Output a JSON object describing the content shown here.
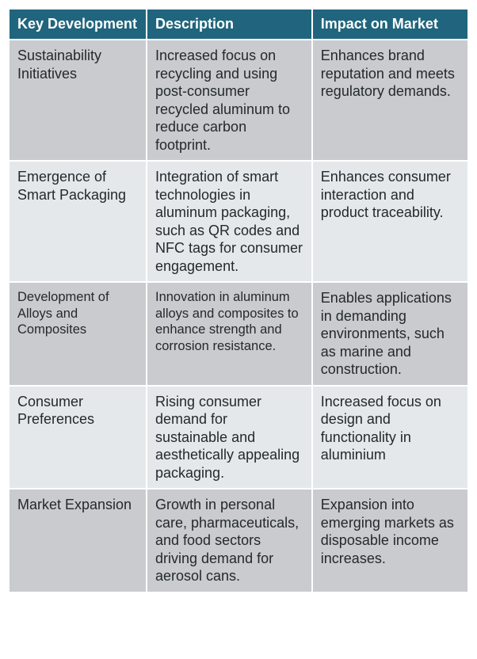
{
  "table": {
    "header_bg": "#20657d",
    "header_color": "#ffffff",
    "row_odd_bg": "#c9cbce",
    "row_even_bg": "#e5e8eb",
    "border_color": "#ffffff",
    "columns": [
      "Key Development",
      "Description",
      "Impact on Market"
    ],
    "column_widths": [
      "30%",
      "36%",
      "34%"
    ],
    "rows": [
      {
        "key": "Sustainability Initiatives",
        "desc": "Increased focus on recycling and using post-consumer recycled aluminum to reduce carbon footprint.",
        "impact": "Enhances brand reputation and meets regulatory demands."
      },
      {
        "key": "Emergence of Smart Packaging",
        "desc": "Integration of smart technologies in aluminum packaging, such as QR codes and NFC tags for consumer engagement.",
        "impact": "Enhances consumer interaction and product traceability."
      },
      {
        "key": "Development of Alloys and Composites",
        "desc": "Innovation in aluminum alloys and composites to enhance strength and corrosion resistance.",
        "impact": "Enables applications in demanding environments, such as marine and construction.",
        "small": true
      },
      {
        "key": "Consumer Preferences",
        "desc": "Rising consumer demand for sustainable and aesthetically appealing packaging.",
        "impact": "Increased focus on design and functionality in aluminium"
      },
      {
        "key": "Market Expansion",
        "desc": "Growth in personal care, pharmaceuticals, and food sectors driving demand for aerosol cans.",
        "impact": "Expansion into emerging markets as disposable income increases."
      }
    ]
  }
}
